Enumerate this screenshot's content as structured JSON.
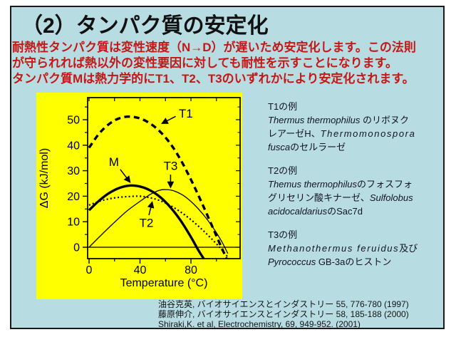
{
  "slide": {
    "title": "（2）タンパク質の安定化",
    "intro_lines": [
      "耐熱性タンパク質は変性速度（N→D）が遅いため安定化します。この法則",
      "が守られれば熱以外の変性要因に対しても耐性を示すことになります。",
      "タンパク質Mは熱力学的にT1、T2、T3のいずれかにより安定化されます。"
    ],
    "colors": {
      "background": "#b7dce2",
      "panel": "#ffff00",
      "intro_text": "#c61717",
      "title_text": "#111111",
      "border": "#1a1a1a",
      "curve": "#000000"
    }
  },
  "chart_data": {
    "type": "line",
    "title": "",
    "xlabel": "Temperature (°C)",
    "ylabel": "ΔG (kJ/mol)",
    "xlim": [
      -1,
      118.5
    ],
    "ylim": [
      -4.5,
      58.5
    ],
    "x_ticks_major": [
      0,
      40,
      80
    ],
    "x_ticks_minor": [
      20,
      60,
      100
    ],
    "y_ticks_major": [
      0,
      10,
      20,
      30,
      40,
      50
    ],
    "y_ticks_minor": [
      5,
      15,
      25,
      35,
      45,
      55
    ],
    "top_ticks": [
      0,
      20,
      40,
      60,
      80,
      100
    ],
    "grid": false,
    "zero_line": true,
    "legend_position": "none",
    "background": "#ffff00",
    "series": [
      {
        "name": "T1",
        "style": "dashed-thick",
        "color": "#000000",
        "points": [
          [
            0,
            39
          ],
          [
            8,
            44.6
          ],
          [
            16,
            48.4
          ],
          [
            24,
            50.6
          ],
          [
            32,
            51.2
          ],
          [
            40,
            50.5
          ],
          [
            48,
            48.5
          ],
          [
            56,
            45.2
          ],
          [
            64,
            40.5
          ],
          [
            72,
            34.2
          ],
          [
            80,
            26.5
          ],
          [
            88,
            18
          ],
          [
            96,
            9
          ],
          [
            103,
            1
          ],
          [
            108,
            -4.5
          ]
        ]
      },
      {
        "name": "M",
        "style": "solid-thick",
        "color": "#000000",
        "points": [
          [
            0,
            14.5
          ],
          [
            8,
            18.3
          ],
          [
            16,
            21.3
          ],
          [
            24,
            23.3
          ],
          [
            32,
            24.2
          ],
          [
            40,
            23.8
          ],
          [
            48,
            22.3
          ],
          [
            56,
            19.6
          ],
          [
            64,
            15.6
          ],
          [
            72,
            10.4
          ],
          [
            80,
            4
          ],
          [
            86,
            -1.3
          ],
          [
            90,
            -4.5
          ]
        ]
      },
      {
        "name": "T3",
        "style": "solid-thin",
        "color": "#000000",
        "points": [
          [
            0,
            0
          ],
          [
            10,
            5
          ],
          [
            20,
            9.8
          ],
          [
            30,
            14.3
          ],
          [
            40,
            18
          ],
          [
            48,
            20.7
          ],
          [
            55,
            22.3
          ],
          [
            60,
            22.6
          ],
          [
            66,
            22.2
          ],
          [
            74,
            20.3
          ],
          [
            82,
            17
          ],
          [
            90,
            12.6
          ],
          [
            98,
            7.2
          ],
          [
            104,
            2.4
          ],
          [
            109,
            -2.5
          ]
        ]
      },
      {
        "name": "T2",
        "style": "dotted",
        "color": "#000000",
        "points": [
          [
            0,
            16.5
          ],
          [
            8,
            18
          ],
          [
            16,
            19
          ],
          [
            24,
            19.6
          ],
          [
            32,
            19.9
          ],
          [
            40,
            20
          ],
          [
            48,
            19.4
          ],
          [
            56,
            18.2
          ],
          [
            64,
            16.3
          ],
          [
            72,
            13.8
          ],
          [
            80,
            10.8
          ],
          [
            88,
            7.3
          ],
          [
            96,
            3.4
          ],
          [
            104,
            -0.8
          ],
          [
            110,
            -4.6
          ]
        ]
      }
    ],
    "annotations": [
      {
        "label": "T1",
        "label_x": 76,
        "label_y": 52.5,
        "arrow_from_x": 68,
        "arrow_from_y": 51.3,
        "arrow_to_x": 57.5,
        "arrow_to_y": 48.6
      },
      {
        "label": "M",
        "label_x": 19.5,
        "label_y": 33.5,
        "arrow_from_x": 24.5,
        "arrow_from_y": 30.5,
        "arrow_to_x": 32,
        "arrow_to_y": 25.6
      },
      {
        "label": "T3",
        "label_x": 64,
        "label_y": 32,
        "arrow_from_x": 64,
        "arrow_from_y": 28.5,
        "arrow_to_x": 64,
        "arrow_to_y": 23.6
      },
      {
        "label": "T2",
        "label_x": 45,
        "label_y": 9.6,
        "arrow_from_x": 47,
        "arrow_from_y": 12.6,
        "arrow_to_x": 49.5,
        "arrow_to_y": 17.6
      }
    ]
  },
  "examples": {
    "blocks": [
      {
        "heading": "T1の例",
        "lines": [
          [
            {
              "t": "Thermus thermophilus ",
              "i": true
            },
            {
              "t": "のリボヌク",
              "i": false
            }
          ],
          [
            {
              "t": "レアーゼH、",
              "i": false
            },
            {
              "t": "Thermomonospora",
              "i": true,
              "ls": true
            }
          ],
          [
            {
              "t": "fusca",
              "i": true
            },
            {
              "t": "のセルラーゼ",
              "i": false
            }
          ]
        ]
      },
      {
        "heading": "T2の例",
        "lines": [
          [
            {
              "t": "Themus thermophilus",
              "i": true
            },
            {
              "t": "のフォスフォ",
              "i": false
            }
          ],
          [
            {
              "t": "グリセリン酸キナーゼ、",
              "i": false
            },
            {
              "t": "Sulfolobus",
              "i": true
            }
          ],
          [
            {
              "t": "acidocaldarius",
              "i": true
            },
            {
              "t": "のSac7d",
              "i": false
            }
          ]
        ]
      },
      {
        "heading": "T3の例",
        "lines": [
          [
            {
              "t": "Methanothermus feruidus",
              "i": true,
              "ls": true
            },
            {
              "t": "及び",
              "i": false
            }
          ],
          [
            {
              "t": "Pyrococcus",
              "i": true
            },
            {
              "t": " GB-3aのヒストン",
              "i": false
            }
          ]
        ]
      }
    ]
  },
  "references": {
    "lines": [
      "油谷克英, バイオサイエンスとインダストリー 55, 776-780 (1997)",
      "藤原伸介, バイオサイエンスとインダストリー 58, 185-188 (2000)",
      "Shiraki,K. et al, Electrochemistry, 69, 949-952. (2001)"
    ]
  }
}
